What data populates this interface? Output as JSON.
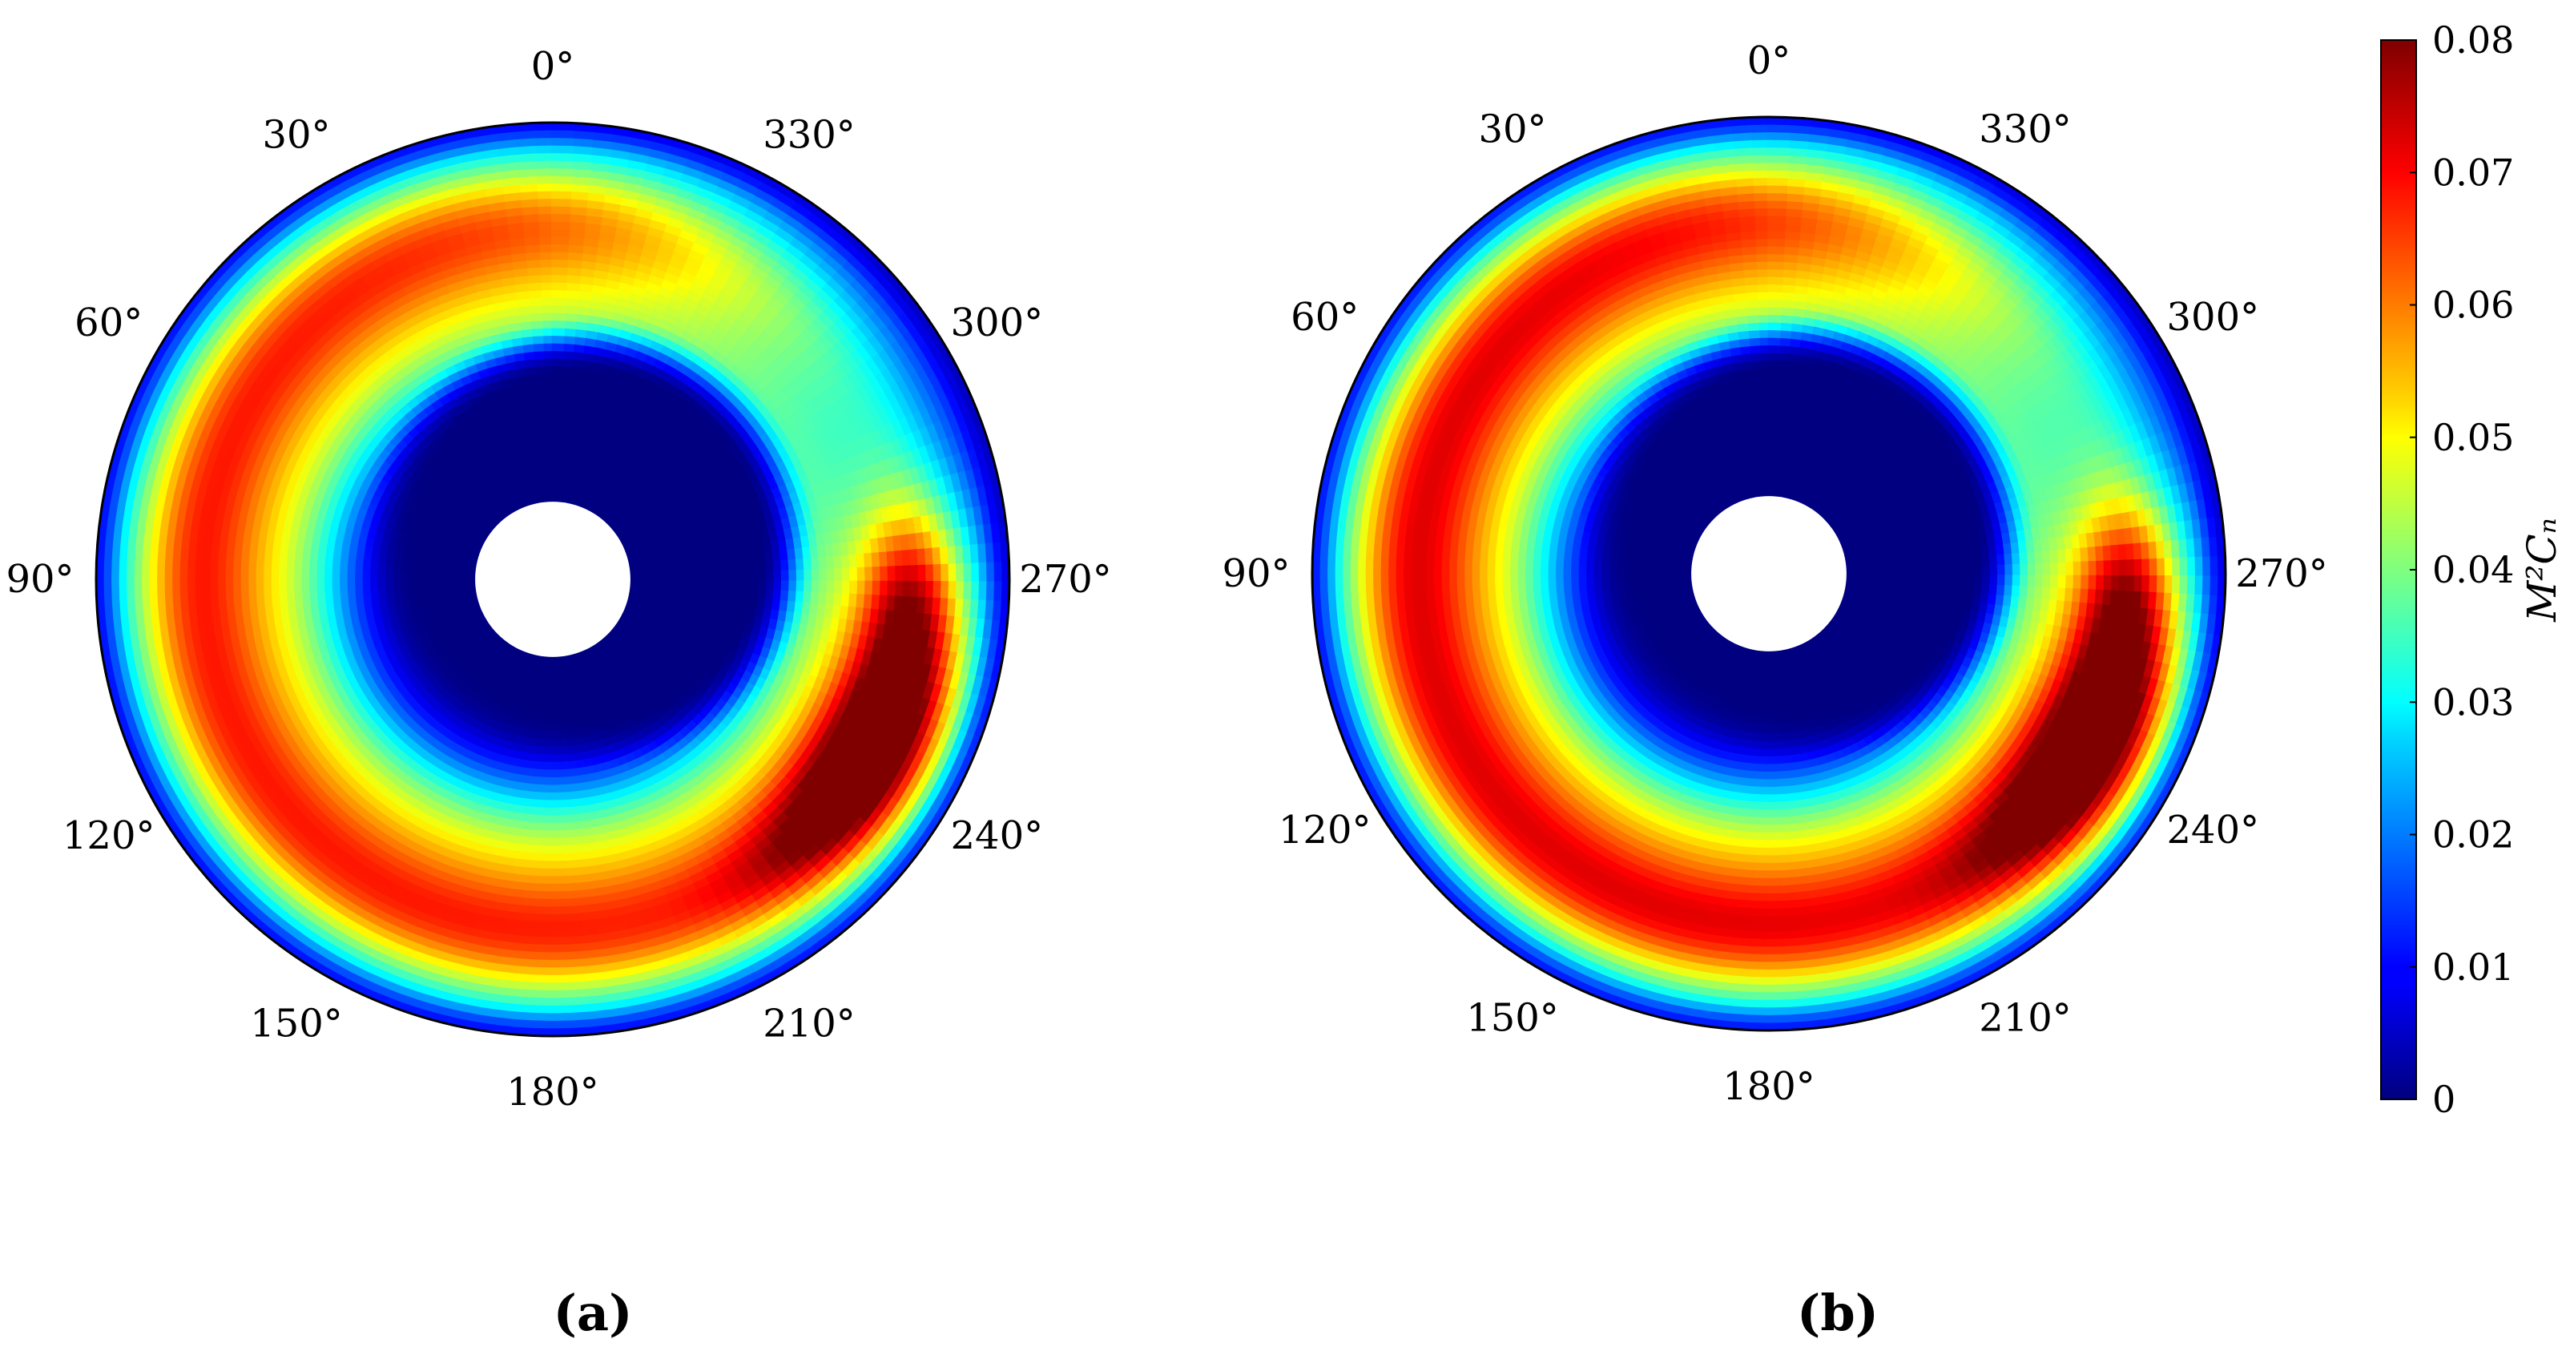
{
  "chart_data": {
    "type": "heatmap",
    "subtype": "polar-annulus",
    "colormap": "jet",
    "angle_direction": "counter-clockwise",
    "zero_angle_at": "top",
    "angle_tick_labels": [
      "0°",
      "30°",
      "60°",
      "90°",
      "120°",
      "150°",
      "180°",
      "210°",
      "240°",
      "270°",
      "300°",
      "330°"
    ],
    "colorbar": {
      "label": "M²Cₙ",
      "range": [
        0,
        0.08
      ],
      "ticks": [
        0,
        0.01,
        0.02,
        0.03,
        0.04,
        0.05,
        0.06,
        0.07,
        0.08
      ],
      "tick_labels": [
        "0",
        "0.01",
        "0.02",
        "0.03",
        "0.04",
        "0.05",
        "0.06",
        "0.07",
        "0.08"
      ],
      "placement": "right"
    },
    "panels": [
      {
        "caption": "(a)",
        "inner_radius_fraction": 0.17,
        "features": [
          {
            "name": "low-value core",
            "value": 0.0,
            "angle_from": 300,
            "angle_to": 120
          },
          {
            "name": "outer high band",
            "value": 0.066,
            "angle_from": 20,
            "angle_to": 230
          },
          {
            "name": "peak lobe",
            "angle_center": 245,
            "peak_value": 0.08
          },
          {
            "name": "upper arc",
            "angle_center": 0,
            "value": 0.058
          }
        ]
      },
      {
        "caption": "(b)",
        "inner_radius_fraction": 0.17,
        "features": [
          {
            "name": "low-value core",
            "value": 0.0,
            "angle_from": 300,
            "angle_to": 120
          },
          {
            "name": "outer high band",
            "value": 0.07,
            "angle_from": 20,
            "angle_to": 230
          },
          {
            "name": "peak lobe",
            "angle_center": 245,
            "peak_value": 0.078
          },
          {
            "name": "upper arc",
            "angle_center": 0,
            "value": 0.058
          }
        ]
      }
    ]
  }
}
